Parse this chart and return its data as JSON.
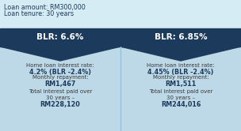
{
  "loan_amount": "Loan amount: RM300,000",
  "loan_tenure": "Loan tenure: 30 years",
  "header_bg": "#1b3a5c",
  "panel_bg": "#bdd8e6",
  "top_bg": "#cce5f0",
  "header_text_color": "#ffffff",
  "body_text_color": "#1b3a5c",
  "label_color": "#3a3a3a",
  "left_blr": "BLR: 6.6%",
  "right_blr": "BLR: 6.85%",
  "left_rate_label": "Home loan interest rate:",
  "left_rate_value": "4.2% (BLR -2.4%)",
  "left_repay_label": "Monthly repayment:",
  "left_repay_value": "RM1,467",
  "left_total_label": "Total interest paid over\n30 years –",
  "left_total_value": "RM228,120",
  "right_rate_label": "Home loan interest rate:",
  "right_rate_value": "4.45% (BLR -2.4%)",
  "right_repay_label": "Monthly repayment:",
  "right_repay_value": "RM1,511",
  "right_total_label": "Total interest paid over\n30 years –",
  "right_total_value": "RM244,016",
  "top_info_bg": "#d6ecf5"
}
